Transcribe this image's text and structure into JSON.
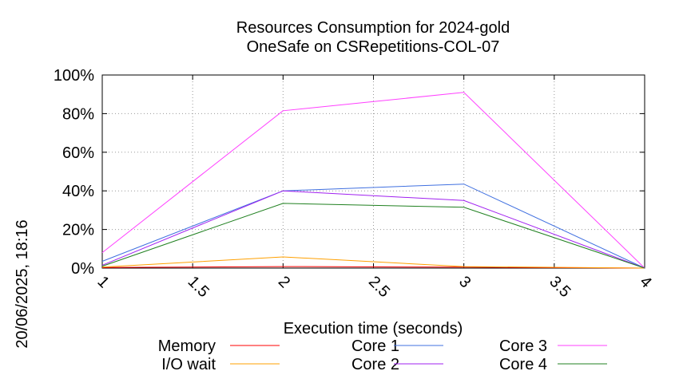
{
  "chart_data": {
    "type": "line",
    "title": [
      "Resources Consumption for 2024-gold",
      "OneSafe on CSRepetitions-COL-07"
    ],
    "xlabel": "Execution time (seconds)",
    "ylabel": "",
    "side_label": "20/06/2025, 18:16",
    "xlim": [
      1,
      4
    ],
    "ylim": [
      0,
      100
    ],
    "x_ticks": [
      {
        "v": 1,
        "label": "1"
      },
      {
        "v": 1.5,
        "label": "1.5"
      },
      {
        "v": 2,
        "label": "2"
      },
      {
        "v": 2.5,
        "label": "2.5"
      },
      {
        "v": 3,
        "label": "3"
      },
      {
        "v": 3.5,
        "label": "3.5"
      },
      {
        "v": 4,
        "label": "4"
      }
    ],
    "y_ticks": [
      {
        "v": 0,
        "label": "0%"
      },
      {
        "v": 20,
        "label": "20%"
      },
      {
        "v": 40,
        "label": "40%"
      },
      {
        "v": 60,
        "label": "60%"
      },
      {
        "v": 80,
        "label": "80%"
      },
      {
        "v": 100,
        "label": "100%"
      }
    ],
    "grid": true,
    "legend_position": "bottom",
    "x": [
      1,
      2,
      3,
      4
    ],
    "series": [
      {
        "name": "Memory",
        "color": "#ff0000",
        "values": [
          0.3,
          0.8,
          0.5,
          0
        ]
      },
      {
        "name": "I/O wait",
        "color": "#ffa000",
        "values": [
          0.5,
          5.8,
          0.8,
          0
        ]
      },
      {
        "name": "Core 1",
        "color": "#4070e0",
        "values": [
          3.5,
          40,
          43.5,
          0
        ]
      },
      {
        "name": "Core 2",
        "color": "#a020f0",
        "values": [
          1.5,
          40,
          35,
          0
        ]
      },
      {
        "name": "Core 3",
        "color": "#ff40ff",
        "values": [
          8,
          81.5,
          91,
          0
        ]
      },
      {
        "name": "Core 4",
        "color": "#208020",
        "values": [
          1,
          33.5,
          31.5,
          0
        ]
      }
    ]
  }
}
